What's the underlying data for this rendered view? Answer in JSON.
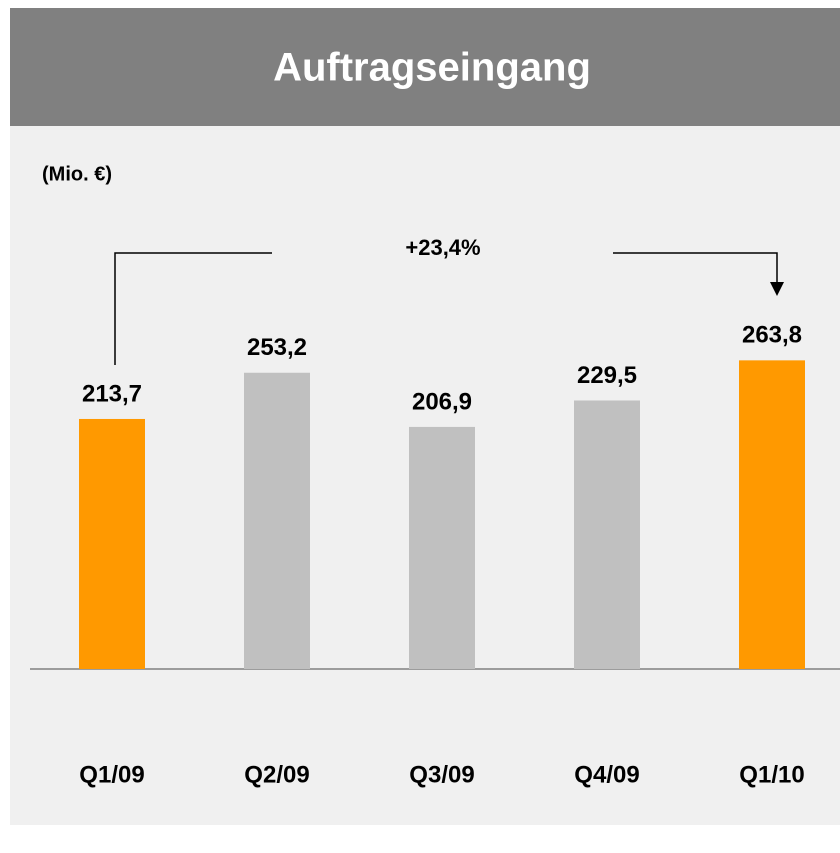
{
  "chart_data": {
    "type": "bar",
    "title": "Auftragseingang",
    "subtitle": "(Mio. €)",
    "annotation": "+23,4%",
    "categories": [
      "Q1/09",
      "Q2/09",
      "Q3/09",
      "Q4/09",
      "Q1/10"
    ],
    "values": [
      213.7,
      253.2,
      206.9,
      229.5,
      263.8
    ],
    "value_labels": [
      "213,7",
      "253,2",
      "206,9",
      "229,5",
      "263,8"
    ],
    "colors": [
      "#ff9900",
      "#c0c0c0",
      "#c0c0c0",
      "#c0c0c0",
      "#ff9900"
    ]
  }
}
